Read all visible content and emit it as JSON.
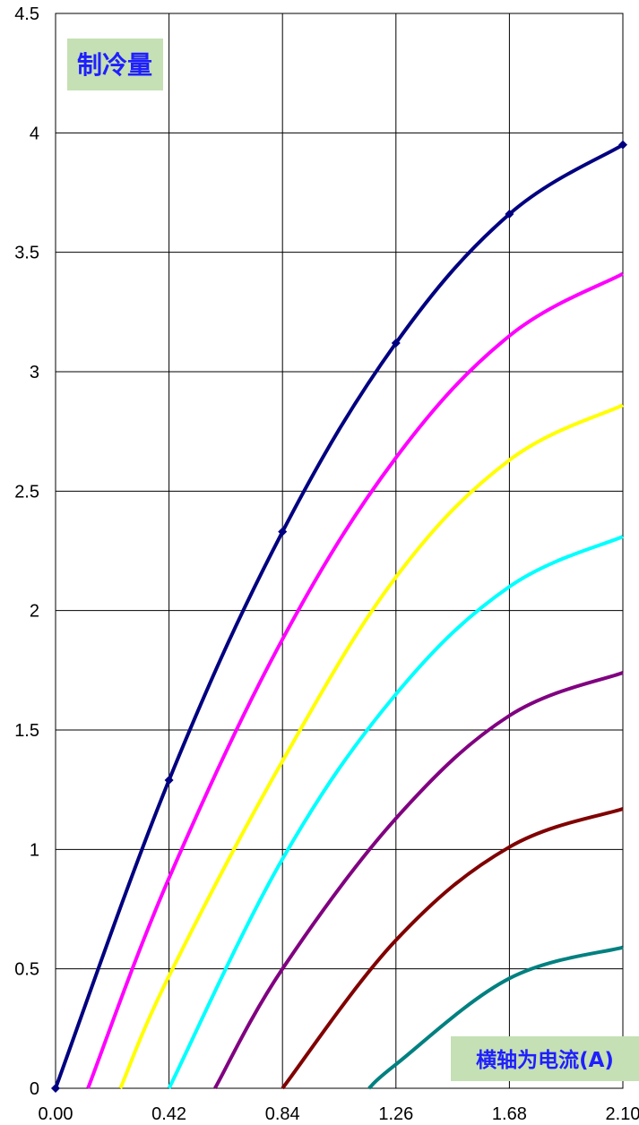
{
  "chart_data": {
    "type": "line",
    "title": "",
    "ylabel": "制冷量",
    "xlabel": "横轴为电流(A)",
    "xlim": [
      0,
      2.1
    ],
    "ylim": [
      0,
      4.5
    ],
    "x_ticks": [
      "0.00",
      "0.42",
      "0.84",
      "1.26",
      "1.68",
      "2.10"
    ],
    "y_ticks": [
      "0",
      "0.5",
      "1",
      "1.5",
      "2",
      "2.5",
      "3",
      "3.5",
      "4",
      "4.5"
    ],
    "grid": true,
    "legend": "none",
    "series": [
      {
        "color": "#000080",
        "markers": true,
        "x": [
          0,
          0.42,
          0.84,
          1.26,
          1.68,
          2.1
        ],
        "y": [
          0,
          1.29,
          2.33,
          3.12,
          3.66,
          3.95
        ]
      },
      {
        "color": "#ff00ff",
        "markers": false,
        "x": [
          0.12,
          0.42,
          0.84,
          1.26,
          1.68,
          2.1
        ],
        "y": [
          0,
          0.88,
          1.88,
          2.64,
          3.15,
          3.41
        ]
      },
      {
        "color": "#ffff00",
        "markers": false,
        "x": [
          0.24,
          0.42,
          0.84,
          1.26,
          1.68,
          2.1
        ],
        "y": [
          0,
          0.47,
          1.37,
          2.14,
          2.63,
          2.86
        ]
      },
      {
        "color": "#00ffff",
        "markers": false,
        "x": [
          0.42,
          0.84,
          1.26,
          1.68,
          2.1
        ],
        "y": [
          0,
          0.96,
          1.65,
          2.1,
          2.31
        ]
      },
      {
        "color": "#800080",
        "markers": false,
        "x": [
          0.59,
          0.84,
          1.26,
          1.68,
          2.1
        ],
        "y": [
          0,
          0.5,
          1.13,
          1.56,
          1.74
        ]
      },
      {
        "color": "#800000",
        "markers": false,
        "x": [
          0.84,
          1.26,
          1.68,
          2.1
        ],
        "y": [
          0,
          0.62,
          1.01,
          1.17
        ]
      },
      {
        "color": "#008080",
        "markers": false,
        "x": [
          1.16,
          1.26,
          1.68,
          2.1
        ],
        "y": [
          0,
          0.1,
          0.46,
          0.59
        ]
      }
    ]
  }
}
